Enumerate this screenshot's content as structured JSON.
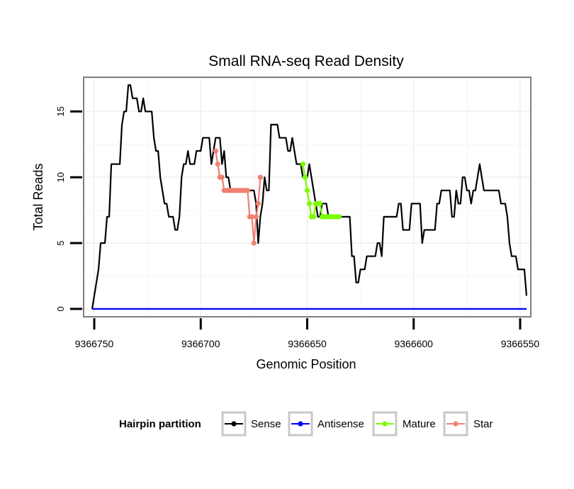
{
  "chart_data": {
    "type": "line",
    "title": "Small RNA-seq Read Density",
    "xlabel": "Genomic Position",
    "ylabel": "Total Reads",
    "xlim": [
      9366755,
      9366545
    ],
    "x_reversed": true,
    "ylim": [
      -0.6,
      17.6
    ],
    "x_ticks": [
      9366750,
      9366700,
      9366650,
      9366600,
      9366550
    ],
    "x_tick_labels": [
      "9366750",
      "9366700",
      "9366650",
      "9366600",
      "9366550"
    ],
    "y_ticks": [
      0,
      5,
      10,
      15
    ],
    "y_tick_labels": [
      "0",
      "5",
      "10",
      "15"
    ],
    "grid": true,
    "legend": {
      "title": "Hairpin partition",
      "position": "bottom",
      "entries": [
        "Sense",
        "Antisense",
        "Mature",
        "Star"
      ]
    },
    "series": [
      {
        "name": "Sense",
        "color": "#000000",
        "markers": false,
        "points": [
          [
            9366751,
            0
          ],
          [
            9366750,
            1
          ],
          [
            9366749,
            2
          ],
          [
            9366748,
            3
          ],
          [
            9366747,
            5
          ],
          [
            9366746,
            5
          ],
          [
            9366745,
            5
          ],
          [
            9366744,
            7
          ],
          [
            9366743,
            7
          ],
          [
            9366742,
            11
          ],
          [
            9366741,
            11
          ],
          [
            9366740,
            11
          ],
          [
            9366739,
            11
          ],
          [
            9366738,
            11
          ],
          [
            9366737,
            14
          ],
          [
            9366736,
            15
          ],
          [
            9366735,
            15
          ],
          [
            9366734,
            17
          ],
          [
            9366733,
            17
          ],
          [
            9366732,
            16
          ],
          [
            9366731,
            16
          ],
          [
            9366730,
            16
          ],
          [
            9366729,
            15
          ],
          [
            9366728,
            15
          ],
          [
            9366727,
            16
          ],
          [
            9366726,
            15
          ],
          [
            9366725,
            15
          ],
          [
            9366724,
            15
          ],
          [
            9366723,
            15
          ],
          [
            9366722,
            13
          ],
          [
            9366721,
            12
          ],
          [
            9366720,
            12
          ],
          [
            9366719,
            10
          ],
          [
            9366718,
            9
          ],
          [
            9366717,
            8
          ],
          [
            9366716,
            8
          ],
          [
            9366715,
            7
          ],
          [
            9366714,
            7
          ],
          [
            9366713,
            7
          ],
          [
            9366712,
            6
          ],
          [
            9366711,
            6
          ],
          [
            9366710,
            7
          ],
          [
            9366709,
            10
          ],
          [
            9366708,
            11
          ],
          [
            9366707,
            11
          ],
          [
            9366706,
            12
          ],
          [
            9366705,
            11
          ],
          [
            9366704,
            11
          ],
          [
            9366703,
            11
          ],
          [
            9366702,
            12
          ],
          [
            9366701,
            12
          ],
          [
            9366700,
            12
          ],
          [
            9366699,
            13
          ],
          [
            9366698,
            13
          ],
          [
            9366697,
            13
          ],
          [
            9366696,
            13
          ],
          [
            9366695,
            11
          ],
          [
            9366694,
            12
          ],
          [
            9366693,
            13
          ],
          [
            9366692,
            13
          ],
          [
            9366691,
            13
          ],
          [
            9366690,
            11
          ],
          [
            9366689,
            12
          ],
          [
            9366688,
            10
          ],
          [
            9366687,
            10
          ],
          [
            9366686,
            9
          ],
          [
            9366685,
            9
          ],
          [
            9366684,
            9
          ],
          [
            9366683,
            9
          ],
          [
            9366682,
            9
          ],
          [
            9366681,
            9
          ],
          [
            9366680,
            9
          ],
          [
            9366679,
            9
          ],
          [
            9366678,
            9
          ],
          [
            9366677,
            9
          ],
          [
            9366676,
            9
          ],
          [
            9366675,
            9
          ],
          [
            9366674,
            8
          ],
          [
            9366673,
            5
          ],
          [
            9366672,
            7
          ],
          [
            9366671,
            8
          ],
          [
            9366670,
            10
          ],
          [
            9366669,
            9
          ],
          [
            9366668,
            9
          ],
          [
            9366667,
            14
          ],
          [
            9366666,
            14
          ],
          [
            9366665,
            14
          ],
          [
            9366664,
            14
          ],
          [
            9366663,
            13
          ],
          [
            9366662,
            13
          ],
          [
            9366661,
            13
          ],
          [
            9366660,
            13
          ],
          [
            9366659,
            12
          ],
          [
            9366658,
            12
          ],
          [
            9366657,
            13
          ],
          [
            9366656,
            12
          ],
          [
            9366655,
            11
          ],
          [
            9366654,
            11
          ],
          [
            9366653,
            11
          ],
          [
            9366652,
            10
          ],
          [
            9366651,
            10
          ],
          [
            9366650,
            10
          ],
          [
            9366649,
            11
          ],
          [
            9366648,
            10
          ],
          [
            9366647,
            9
          ],
          [
            9366646,
            8
          ],
          [
            9366645,
            7
          ],
          [
            9366644,
            7
          ],
          [
            9366643,
            8
          ],
          [
            9366642,
            8
          ],
          [
            9366641,
            8
          ],
          [
            9366640,
            7
          ],
          [
            9366639,
            7
          ],
          [
            9366638,
            7
          ],
          [
            9366637,
            7
          ],
          [
            9366636,
            7
          ],
          [
            9366635,
            7
          ],
          [
            9366634,
            7
          ],
          [
            9366633,
            7
          ],
          [
            9366632,
            7
          ],
          [
            9366631,
            7
          ],
          [
            9366630,
            7
          ],
          [
            9366629,
            4
          ],
          [
            9366628,
            4
          ],
          [
            9366627,
            2
          ],
          [
            9366626,
            2
          ],
          [
            9366625,
            3
          ],
          [
            9366624,
            3
          ],
          [
            9366623,
            3
          ],
          [
            9366622,
            4
          ],
          [
            9366621,
            4
          ],
          [
            9366620,
            4
          ],
          [
            9366619,
            4
          ],
          [
            9366618,
            4
          ],
          [
            9366617,
            5
          ],
          [
            9366616,
            5
          ],
          [
            9366615,
            4
          ],
          [
            9366614,
            7
          ],
          [
            9366613,
            7
          ],
          [
            9366612,
            7
          ],
          [
            9366611,
            7
          ],
          [
            9366610,
            7
          ],
          [
            9366609,
            7
          ],
          [
            9366608,
            7
          ],
          [
            9366607,
            8
          ],
          [
            9366606,
            8
          ],
          [
            9366605,
            6
          ],
          [
            9366604,
            6
          ],
          [
            9366603,
            6
          ],
          [
            9366602,
            6
          ],
          [
            9366601,
            8
          ],
          [
            9366600,
            8
          ],
          [
            9366599,
            8
          ],
          [
            9366598,
            8
          ],
          [
            9366597,
            8
          ],
          [
            9366596,
            5
          ],
          [
            9366595,
            6
          ],
          [
            9366594,
            6
          ],
          [
            9366593,
            6
          ],
          [
            9366592,
            6
          ],
          [
            9366591,
            6
          ],
          [
            9366590,
            6
          ],
          [
            9366589,
            8
          ],
          [
            9366588,
            8
          ],
          [
            9366587,
            9
          ],
          [
            9366586,
            9
          ],
          [
            9366585,
            9
          ],
          [
            9366584,
            9
          ],
          [
            9366583,
            9
          ],
          [
            9366582,
            7
          ],
          [
            9366581,
            7
          ],
          [
            9366580,
            9
          ],
          [
            9366579,
            8
          ],
          [
            9366578,
            8
          ],
          [
            9366577,
            10
          ],
          [
            9366576,
            10
          ],
          [
            9366575,
            9
          ],
          [
            9366574,
            9
          ],
          [
            9366573,
            8
          ],
          [
            9366572,
            9
          ],
          [
            9366571,
            9
          ],
          [
            9366570,
            10
          ],
          [
            9366569,
            11
          ],
          [
            9366568,
            10
          ],
          [
            9366567,
            9
          ],
          [
            9366566,
            9
          ],
          [
            9366565,
            9
          ],
          [
            9366564,
            9
          ],
          [
            9366563,
            9
          ],
          [
            9366562,
            9
          ],
          [
            9366561,
            9
          ],
          [
            9366560,
            9
          ],
          [
            9366559,
            8
          ],
          [
            9366558,
            8
          ],
          [
            9366557,
            8
          ],
          [
            9366556,
            7
          ],
          [
            9366555,
            5
          ],
          [
            9366554,
            4
          ],
          [
            9366553,
            4
          ],
          [
            9366552,
            4
          ],
          [
            9366551,
            3
          ],
          [
            9366550,
            3
          ],
          [
            9366549,
            3
          ],
          [
            9366548,
            3
          ],
          [
            9366547,
            1
          ]
        ]
      },
      {
        "name": "Antisense",
        "color": "#0000ff",
        "markers": false,
        "points": [
          [
            9366751,
            0
          ],
          [
            9366547,
            0
          ]
        ]
      },
      {
        "name": "Mature",
        "color": "#7cfc00",
        "markers": true,
        "points": [
          [
            9366652,
            11
          ],
          [
            9366651,
            10
          ],
          [
            9366650,
            9
          ],
          [
            9366649,
            8
          ],
          [
            9366648,
            7
          ],
          [
            9366647,
            7
          ],
          [
            9366646,
            8
          ],
          [
            9366645,
            8
          ],
          [
            9366644,
            8
          ],
          [
            9366643,
            7
          ],
          [
            9366642,
            7
          ],
          [
            9366641,
            7
          ],
          [
            9366640,
            7
          ],
          [
            9366639,
            7
          ],
          [
            9366638,
            7
          ],
          [
            9366637,
            7
          ],
          [
            9366636,
            7
          ],
          [
            9366635,
            7
          ]
        ]
      },
      {
        "name": "Star",
        "color": "#f08070",
        "markers": true,
        "points": [
          [
            9366693,
            12
          ],
          [
            9366692,
            11
          ],
          [
            9366691,
            10
          ],
          [
            9366690,
            10
          ],
          [
            9366689,
            9
          ],
          [
            9366688,
            9
          ],
          [
            9366687,
            9
          ],
          [
            9366686,
            9
          ],
          [
            9366685,
            9
          ],
          [
            9366684,
            9
          ],
          [
            9366683,
            9
          ],
          [
            9366682,
            9
          ],
          [
            9366681,
            9
          ],
          [
            9366680,
            9
          ],
          [
            9366679,
            9
          ],
          [
            9366678,
            9
          ],
          [
            9366677,
            7
          ],
          [
            9366676,
            7
          ],
          [
            9366675,
            5
          ],
          [
            9366674,
            7
          ],
          [
            9366673,
            8
          ],
          [
            9366672,
            10
          ]
        ]
      }
    ]
  }
}
